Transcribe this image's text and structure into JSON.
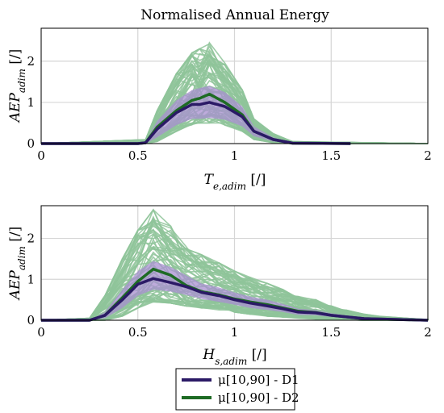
{
  "title": "Normalised Annual Energy",
  "panels": [
    {
      "ylabel": "AEP_adim [/]",
      "xlabel": "T_e,adim [/]",
      "xticks": [
        "0",
        "0.5",
        "1",
        "1.5",
        "2"
      ],
      "yticks": [
        "0",
        "1",
        "2"
      ]
    },
    {
      "ylabel": "AEP_adim [/]",
      "xlabel": "H_s,adim [/]",
      "xticks": [
        "0",
        "0.5",
        "1",
        "1.5",
        "2"
      ],
      "yticks": [
        "0",
        "1",
        "2"
      ]
    }
  ],
  "legend": [
    {
      "label": "μ[10,90] - D1",
      "color": "#2b1a66"
    },
    {
      "label": "μ[10,90] - D2",
      "color": "#1e6b24"
    }
  ],
  "colors": {
    "samples": "#8fc49a",
    "band": "#a88fd0",
    "d1": "#2b1a66",
    "d2": "#1e6b24",
    "grid": "#d6d6d6"
  },
  "chart_data": [
    {
      "type": "line",
      "title": "Normalised Annual Energy",
      "xlabel": "T_e,adim [/]",
      "ylabel": "AEP_adim [/]",
      "xlim": [
        0,
        2
      ],
      "ylim": [
        0,
        2.8
      ],
      "grid": true,
      "series": [
        {
          "name": "μ[10,90] - D1",
          "x": [
            0,
            0.5,
            0.54,
            0.6,
            0.7,
            0.78,
            0.82,
            0.87,
            0.95,
            1.04,
            1.1,
            1.2,
            1.3,
            1.6
          ],
          "y": [
            0,
            0,
            0.02,
            0.35,
            0.75,
            0.95,
            0.95,
            1.0,
            0.9,
            0.65,
            0.3,
            0.1,
            0.01,
            0
          ]
        },
        {
          "name": "μ[10,90] - D2",
          "x": [
            0,
            0.5,
            0.54,
            0.6,
            0.7,
            0.78,
            0.82,
            0.87,
            0.95,
            1.04,
            1.1,
            1.2,
            1.3,
            1.6
          ],
          "y": [
            0,
            0,
            0.02,
            0.4,
            0.8,
            1.05,
            1.1,
            1.2,
            1.0,
            0.7,
            0.3,
            0.1,
            0.01,
            0
          ]
        }
      ],
      "band_10_90": {
        "x": [
          0.54,
          0.6,
          0.7,
          0.78,
          0.82,
          0.87,
          0.95,
          1.04,
          1.1,
          1.2,
          1.3
        ],
        "lower": [
          0.0,
          0.15,
          0.45,
          0.6,
          0.6,
          0.62,
          0.58,
          0.42,
          0.18,
          0.05,
          0.0
        ],
        "upper": [
          0.05,
          0.55,
          1.05,
          1.3,
          1.35,
          1.4,
          1.25,
          0.9,
          0.42,
          0.15,
          0.02
        ]
      },
      "samples_envelope": {
        "x": [
          0.54,
          0.6,
          0.7,
          0.78,
          0.82,
          0.87,
          0.95,
          1.04,
          1.1,
          1.2,
          1.3
        ],
        "lower": [
          0.0,
          0.05,
          0.3,
          0.45,
          0.5,
          0.5,
          0.45,
          0.3,
          0.1,
          0.02,
          0.0
        ],
        "upper": [
          0.1,
          0.8,
          1.7,
          2.2,
          2.3,
          2.45,
          2.0,
          1.3,
          0.6,
          0.25,
          0.05
        ]
      }
    },
    {
      "type": "line",
      "xlabel": "H_s,adim [/]",
      "ylabel": "AEP_adim [/]",
      "xlim": [
        0,
        2
      ],
      "ylim": [
        0,
        2.8
      ],
      "grid": true,
      "series": [
        {
          "name": "μ[10,90] - D1",
          "x": [
            0,
            0.25,
            0.33,
            0.42,
            0.5,
            0.58,
            0.67,
            0.75,
            0.83,
            0.92,
            1.0,
            1.08,
            1.17,
            1.25,
            1.33,
            1.42,
            1.5,
            1.58,
            1.67,
            1.75,
            1.83,
            1.92,
            2.0
          ],
          "y": [
            0,
            0,
            0.12,
            0.5,
            0.88,
            1.02,
            0.92,
            0.82,
            0.68,
            0.6,
            0.5,
            0.42,
            0.35,
            0.28,
            0.2,
            0.18,
            0.12,
            0.08,
            0.04,
            0.03,
            0.02,
            0.01,
            0
          ]
        },
        {
          "name": "μ[10,90] - D2",
          "x": [
            0,
            0.25,
            0.33,
            0.42,
            0.5,
            0.58,
            0.67,
            0.75,
            0.83,
            0.92,
            1.0,
            1.08,
            1.17,
            1.25,
            1.33,
            1.42,
            1.5,
            1.58,
            1.67,
            1.75,
            1.83,
            1.92,
            2.0
          ],
          "y": [
            0,
            0,
            0.12,
            0.55,
            0.95,
            1.25,
            1.1,
            0.85,
            0.7,
            0.62,
            0.52,
            0.45,
            0.38,
            0.3,
            0.22,
            0.19,
            0.12,
            0.08,
            0.04,
            0.03,
            0.02,
            0.01,
            0
          ]
        }
      ],
      "band_10_90": {
        "x": [
          0.25,
          0.33,
          0.42,
          0.5,
          0.58,
          0.67,
          0.75,
          0.83,
          0.92,
          1.0,
          1.08,
          1.17,
          1.25,
          1.33,
          1.42,
          1.5,
          1.58,
          1.67,
          1.75,
          1.83,
          1.92,
          2.0
        ],
        "lower": [
          0.0,
          0.05,
          0.3,
          0.6,
          0.75,
          0.7,
          0.62,
          0.52,
          0.45,
          0.38,
          0.3,
          0.25,
          0.2,
          0.13,
          0.12,
          0.08,
          0.05,
          0.02,
          0.01,
          0.0,
          0.0,
          0.0
        ],
        "upper": [
          0.0,
          0.2,
          0.75,
          1.2,
          1.45,
          1.3,
          1.1,
          0.9,
          0.8,
          0.68,
          0.58,
          0.5,
          0.4,
          0.28,
          0.25,
          0.17,
          0.12,
          0.07,
          0.05,
          0.04,
          0.02,
          0.0
        ]
      },
      "samples_envelope": {
        "x": [
          0.25,
          0.33,
          0.42,
          0.5,
          0.58,
          0.67,
          0.75,
          0.83,
          0.92,
          1.0,
          1.08,
          1.17,
          1.25,
          1.33,
          1.42,
          1.5,
          1.58,
          1.67,
          1.75,
          1.83,
          1.92,
          2.0
        ],
        "lower": [
          0.0,
          0.0,
          0.1,
          0.3,
          0.45,
          0.42,
          0.35,
          0.3,
          0.25,
          0.2,
          0.15,
          0.1,
          0.08,
          0.05,
          0.03,
          0.02,
          0.01,
          0.0,
          0.0,
          0.0,
          0.0,
          0.0
        ],
        "upper": [
          0.05,
          0.6,
          1.5,
          2.2,
          2.7,
          2.3,
          1.8,
          1.6,
          1.4,
          1.2,
          1.05,
          0.9,
          0.75,
          0.6,
          0.5,
          0.35,
          0.25,
          0.15,
          0.1,
          0.07,
          0.04,
          0.02
        ]
      }
    }
  ]
}
